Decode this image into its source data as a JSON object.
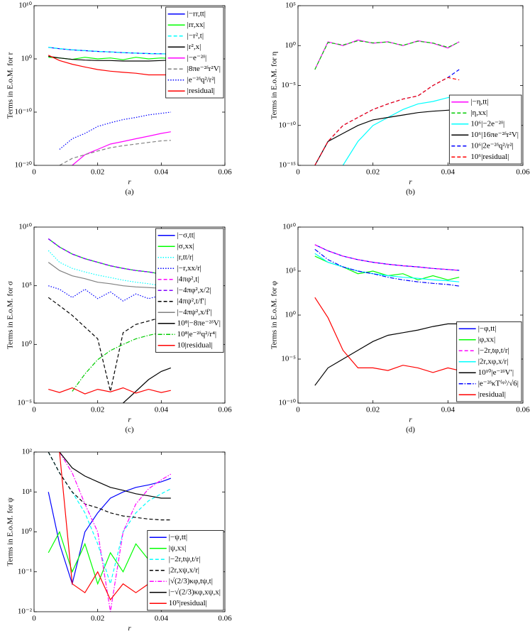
{
  "chart_data": [
    {
      "type": "line",
      "log_y": true,
      "caption": "(a)",
      "ylabel": "Terms in E.o.M. for r",
      "xlabel": "r",
      "legend": "upper right",
      "xlim": [
        0,
        0.06
      ],
      "xticks": [
        0,
        0.02,
        0.04,
        0.06
      ],
      "ylim": [
        1e-20,
        10000000000.0
      ],
      "yticks": [
        {
          "value": 1e-20,
          "label": "10⁻²⁰"
        },
        {
          "value": 1e-10,
          "label": "10⁻¹⁰"
        },
        {
          "value": 1,
          "label": "10⁰"
        },
        {
          "value": 10000000000.0,
          "label": "10¹⁰"
        }
      ],
      "x": [
        0.0045,
        0.008,
        0.012,
        0.016,
        0.02,
        0.024,
        0.028,
        0.032,
        0.036,
        0.04,
        0.043
      ],
      "series": [
        {
          "name": "|−rr,tt|",
          "color": "#0000ff",
          "style": "solid",
          "values": [
            150,
            80,
            50,
            35,
            25,
            20,
            15,
            12,
            10,
            9,
            8
          ]
        },
        {
          "name": "|rr,xx|",
          "color": "#00ff00",
          "style": "solid",
          "values": [
            2,
            1.5,
            0.8,
            2,
            1,
            1.5,
            0.7,
            2,
            1,
            1.5,
            1.2
          ]
        },
        {
          "name": "|−r²,t|",
          "color": "#00ffff",
          "style": "dashed",
          "values": [
            160,
            85,
            52,
            36,
            26,
            20,
            16,
            12,
            10,
            9,
            8
          ]
        },
        {
          "name": "|r²,x|",
          "color": "#000000",
          "style": "solid",
          "values": [
            3,
            1.5,
            0.8,
            0.6,
            0.5,
            0.5,
            0.4,
            0.4,
            0.4,
            0.5,
            0.6
          ]
        },
        {
          "name": "|−e⁻²ᵟ|",
          "color": "#ff00ff",
          "style": "solid",
          "values": [
            null,
            null,
            1e-20,
            1e-18,
            1e-17,
            1e-16,
            3e-16,
            1e-15,
            3e-15,
            1e-14,
            2e-14
          ]
        },
        {
          "name": "|8πe⁻²ᵟr²V|",
          "color": "#808080",
          "style": "dashed",
          "values": [
            null,
            1e-20,
            2e-19,
            1e-18,
            5e-18,
            2e-17,
            5e-17,
            1e-16,
            2e-16,
            4e-16,
            5e-16
          ]
        },
        {
          "name": "|e⁻²ᵟq²/r²|",
          "color": "#0000ff",
          "style": "dotted",
          "values": [
            null,
            1e-17,
            1e-15,
            1e-14,
            2e-13,
            1e-12,
            4e-12,
            1e-11,
            3e-11,
            6e-11,
            1e-10
          ]
        },
        {
          "name": "|residual|",
          "color": "#ff0000",
          "style": "solid",
          "values": [
            5,
            0.5,
            0.1,
            0.03,
            0.01,
            0.005,
            0.003,
            0.002,
            0.001,
            0.001,
            0.001
          ]
        }
      ]
    },
    {
      "type": "line",
      "log_y": true,
      "caption": "(b)",
      "ylabel": "Terms in E.o.M. for η",
      "xlabel": "r",
      "legend": "lower right",
      "xlim": [
        0,
        0.06
      ],
      "xticks": [
        0,
        0.02,
        0.04,
        0.06
      ],
      "ylim": [
        1e-15,
        100000.0
      ],
      "yticks": [
        {
          "value": 1e-15,
          "label": "10⁻¹⁵"
        },
        {
          "value": 1e-10,
          "label": "10⁻¹⁰"
        },
        {
          "value": 1e-05,
          "label": "10⁻⁵"
        },
        {
          "value": 1,
          "label": "10⁰"
        },
        {
          "value": 100000.0,
          "label": "10⁵"
        }
      ],
      "x": [
        0.0045,
        0.008,
        0.012,
        0.016,
        0.02,
        0.024,
        0.028,
        0.032,
        0.036,
        0.04,
        0.043
      ],
      "series": [
        {
          "name": "|−η,tt|",
          "color": "#ff00ff",
          "style": "solid",
          "values": [
            0.001,
            3,
            1,
            5,
            2,
            3,
            1,
            4,
            2,
            0.5,
            3
          ]
        },
        {
          "name": "|η,xx|",
          "color": "#00cc00",
          "style": "dashed",
          "values": [
            0.001,
            2.5,
            1.2,
            4,
            2.2,
            2.8,
            1.1,
            3.5,
            2.1,
            0.6,
            2.8
          ]
        },
        {
          "name": "10⁶|−2e⁻²ᵟ|",
          "color": "#00ffff",
          "style": "solid",
          "values": [
            null,
            null,
            1e-15,
            1e-12,
            1e-10,
            1e-09,
            1e-08,
            5e-08,
            1e-07,
            3e-07,
            5e-07
          ]
        },
        {
          "name": "10⁶|16πe⁻²ᵟr²V|",
          "color": "#000000",
          "style": "solid",
          "values": [
            1e-15,
            1e-12,
            1e-11,
            1e-10,
            5e-10,
            1e-09,
            2e-09,
            4e-09,
            6e-09,
            8e-09,
            1e-08
          ]
        },
        {
          "name": "10⁶|2e⁻²ᵟq²/r²|",
          "color": "#0000ff",
          "style": "dashed",
          "values": [
            1e-15,
            1e-12,
            1e-10,
            1e-09,
            1e-08,
            5e-08,
            2e-07,
            5e-07,
            1e-05,
            0.0001,
            0.001
          ]
        },
        {
          "name": "10⁶|residual|",
          "color": "#ff0000",
          "style": "dashed",
          "values": [
            1e-15,
            1e-12,
            1e-10,
            1e-09,
            1e-08,
            5e-08,
            2e-07,
            5e-07,
            1e-05,
            0.0001,
            5e-05
          ]
        }
      ]
    },
    {
      "type": "line",
      "log_y": true,
      "caption": "(c)",
      "ylabel": "Terms in E.o.M. for σ",
      "xlabel": "r",
      "legend": "upper right",
      "xlim": [
        0,
        0.06
      ],
      "xticks": [
        0,
        0.02,
        0.04,
        0.06
      ],
      "ylim": [
        1e-05,
        10000000000.0
      ],
      "yticks": [
        {
          "value": 1e-05,
          "label": "10⁻⁵"
        },
        {
          "value": 1,
          "label": "10⁰"
        },
        {
          "value": 100000.0,
          "label": "10⁵"
        },
        {
          "value": 10000000000.0,
          "label": "10¹⁰"
        }
      ],
      "x": [
        0.0045,
        0.008,
        0.012,
        0.016,
        0.02,
        0.024,
        0.028,
        0.032,
        0.036,
        0.04,
        0.043
      ],
      "series": [
        {
          "name": "|−σ,tt|",
          "color": "#0000ff",
          "style": "solid",
          "values": [
            1000000000.0,
            200000000.0,
            50000000.0,
            20000000.0,
            10000000.0,
            5000000.0,
            3000000.0,
            2000000.0,
            1500000.0,
            1000000.0,
            800000.0
          ]
        },
        {
          "name": "|σ,xx|",
          "color": "#00ff00",
          "style": "solid",
          "values": [
            1000000000.0,
            200000000.0,
            50000000.0,
            20000000.0,
            10000000.0,
            5000000.0,
            3000000.0,
            2000000.0,
            1500000.0,
            1000000.0,
            800000.0
          ]
        },
        {
          "name": "|r,tt/r|",
          "color": "#00ffff",
          "style": "dotted",
          "values": [
            100000000.0,
            10000000.0,
            3000000.0,
            1500000.0,
            800000.0,
            500000.0,
            300000.0,
            200000.0,
            150000.0,
            100000.0,
            80000.0
          ]
        },
        {
          "name": "|−r,xx/r|",
          "color": "#0000ff",
          "style": "dotted",
          "values": [
            100000.0,
            50000.0,
            10000.0,
            50000.0,
            8000.0,
            30000.0,
            5000.0,
            20000.0,
            8000.0,
            15000.0,
            10000.0
          ]
        },
        {
          "name": "|4πφ²,t|",
          "color": "#ff00ff",
          "style": "dashed",
          "values": [
            1000000000.0,
            200000000.0,
            50000000.0,
            20000000.0,
            10000000.0,
            5000000.0,
            3000000.0,
            2000000.0,
            1500000.0,
            1000000.0,
            800000.0
          ]
        },
        {
          "name": "|−4πφ²,x/2|",
          "color": "#8000ff",
          "style": "dashed",
          "values": [
            1000000000.0,
            200000000.0,
            50000000.0,
            20000000.0,
            10000000.0,
            5000000.0,
            3000000.0,
            2000000.0,
            1500000.0,
            1000000.0,
            800000.0
          ]
        },
        {
          "name": "|4πψ²,t/f′|",
          "color": "#000000",
          "style": "dashed",
          "values": [
            10000.0,
            2000.0,
            300,
            30,
            3,
            0.0001,
            10,
            50,
            100,
            200,
            300
          ]
        },
        {
          "name": "|−4πψ²,x/f′|",
          "color": "#808080",
          "style": "solid",
          "values": [
            10000000.0,
            2000000.0,
            700000.0,
            400000.0,
            200000.0,
            150000.0,
            100000.0,
            80000.0,
            70000.0,
            60000.0,
            50000.0
          ]
        },
        {
          "name": "10⁸|−8πe⁻²ᵟV|",
          "color": "#000000",
          "style": "solid",
          "values": [
            null,
            null,
            null,
            null,
            null,
            null,
            1e-05,
            0.0001,
            0.001,
            0.005,
            0.01
          ]
        },
        {
          "name": "10⁸|e⁻²ᵟq²/r⁴|",
          "color": "#00cc00",
          "style": "dashdot",
          "values": [
            null,
            null,
            0.0001,
            0.003,
            0.05,
            0.3,
            1,
            3,
            6,
            10,
            15
          ]
        },
        {
          "name": "10|residual|",
          "color": "#ff0000",
          "style": "solid",
          "values": [
            0.00015,
            8e-05,
            0.0002,
            6e-05,
            0.00015,
            9e-05,
            0.0002,
            7e-05,
            0.00015,
            8e-05,
            0.00012
          ]
        }
      ]
    },
    {
      "type": "line",
      "log_y": true,
      "caption": "(d)",
      "ylabel": "Terms in E.o.M. for φ",
      "xlabel": "r",
      "legend": "lower right",
      "xlim": [
        0,
        0.06
      ],
      "xticks": [
        0,
        0.02,
        0.04,
        0.06
      ],
      "ylim": [
        1e-10,
        10000000000.0
      ],
      "yticks": [
        {
          "value": 1e-10,
          "label": "10⁻¹⁰"
        },
        {
          "value": 1e-05,
          "label": "10⁻⁵"
        },
        {
          "value": 1,
          "label": "10⁰"
        },
        {
          "value": 100000.0,
          "label": "10⁵"
        },
        {
          "value": 10000000000.0,
          "label": "10¹⁰"
        }
      ],
      "x": [
        0.0045,
        0.008,
        0.012,
        0.016,
        0.02,
        0.024,
        0.028,
        0.032,
        0.036,
        0.04,
        0.043
      ],
      "series": [
        {
          "name": "|−φ,tt|",
          "color": "#0000ff",
          "style": "solid",
          "values": [
            100000000.0,
            20000000.0,
            5000000.0,
            2000000.0,
            1000000.0,
            600000.0,
            400000.0,
            300000.0,
            200000.0,
            150000.0,
            120000.0
          ]
        },
        {
          "name": "|φ,xx|",
          "color": "#00ff00",
          "style": "solid",
          "values": [
            5000000.0,
            1000000.0,
            300000.0,
            50000.0,
            100000.0,
            30000.0,
            50000.0,
            10000.0,
            30000.0,
            10000.0,
            20000.0
          ]
        },
        {
          "name": "|−2r,tφ,t/r|",
          "color": "#ff00ff",
          "style": "dashed",
          "values": [
            100000000.0,
            20000000.0,
            5000000.0,
            2000000.0,
            1000000.0,
            600000.0,
            400000.0,
            300000.0,
            200000.0,
            150000.0,
            120000.0
          ]
        },
        {
          "name": "|2r,xφ,x/r|",
          "color": "#00ffff",
          "style": "solid",
          "values": [
            10000000.0,
            1000000.0,
            300000.0,
            100000.0,
            50000.0,
            30000.0,
            20000.0,
            15000.0,
            10000.0,
            8000.0,
            6000.0
          ]
        },
        {
          "name": "10¹⁰|e⁻²ᵟV′|",
          "color": "#000000",
          "style": "solid",
          "values": [
            1e-08,
            1e-06,
            1e-05,
            0.0001,
            0.001,
            0.005,
            0.01,
            0.02,
            0.05,
            0.1,
            0.1
          ]
        },
        {
          "name": "|e⁻²ᵟκT⁽ᵠ⁾/√6|",
          "color": "#0000ff",
          "style": "dashdot",
          "values": [
            30000000.0,
            2000000.0,
            300000.0,
            100000.0,
            50000.0,
            20000.0,
            10000.0,
            6000.0,
            4000.0,
            3000.0,
            2000.0
          ]
        },
        {
          "name": "|residual|",
          "color": "#ff0000",
          "style": "solid",
          "values": [
            100,
            0.5,
            0.0001,
            1e-06,
            1e-06,
            5e-07,
            2e-06,
            1e-06,
            3e-07,
            1e-06,
            5e-07
          ]
        }
      ]
    },
    {
      "type": "line",
      "log_y": true,
      "caption": "(e)",
      "ylabel": "Terms in E.o.M. for ψ",
      "xlabel": "r",
      "legend": "lower right",
      "xlim": [
        0,
        0.06
      ],
      "xticks": [
        0,
        0.02,
        0.04,
        0.06
      ],
      "ylim": [
        0.01,
        100
      ],
      "yticks": [
        {
          "value": 0.01,
          "label": "10⁻²"
        },
        {
          "value": 0.1,
          "label": "10⁻¹"
        },
        {
          "value": 1,
          "label": "10⁰"
        },
        {
          "value": 10,
          "label": "10¹"
        },
        {
          "value": 100,
          "label": "10²"
        }
      ],
      "x": [
        0.0045,
        0.008,
        0.012,
        0.016,
        0.02,
        0.024,
        0.028,
        0.032,
        0.036,
        0.04,
        0.043
      ],
      "series": [
        {
          "name": "|−ψ,tt|",
          "color": "#0000ff",
          "style": "solid",
          "values": [
            10,
            0.5,
            0.05,
            1,
            3,
            7,
            10,
            13,
            15,
            18,
            22
          ]
        },
        {
          "name": "|ψ,xx|",
          "color": "#00ff00",
          "style": "solid",
          "values": [
            0.3,
            1,
            0.1,
            0.5,
            0.05,
            0.3,
            0.1,
            0.5,
            0.2,
            0.5,
            0.3
          ]
        },
        {
          "name": "|−2r,tψ,t/r|",
          "color": "#00ffff",
          "style": "dashed",
          "values": [
            100,
            30,
            10,
            3,
            0.5,
            0.05,
            1,
            3,
            6,
            9,
            12
          ]
        },
        {
          "name": "|2r,xψ,x/r|",
          "color": "#000000",
          "style": "dashed",
          "values": [
            100,
            30,
            10,
            5,
            4,
            3,
            2.5,
            2.3,
            2.1,
            2,
            2
          ]
        },
        {
          "name": "|√(2/3)κφ,tψ,t|",
          "color": "#ff00ff",
          "style": "dashdot",
          "values": [
            null,
            100,
            30,
            5,
            1,
            0.01,
            1,
            5,
            12,
            20,
            28
          ]
        },
        {
          "name": "|−√(2/3)κφ,xψ,x|",
          "color": "#000000",
          "style": "solid",
          "values": [
            null,
            100,
            40,
            25,
            18,
            13,
            11,
            9,
            8,
            7,
            7
          ]
        },
        {
          "name": "10⁵|residual|",
          "color": "#ff0000",
          "style": "solid",
          "values": [
            null,
            100,
            0.05,
            0.03,
            0.1,
            0.02,
            0.05,
            0.03,
            0.05,
            0.02,
            0.03
          ]
        }
      ]
    }
  ]
}
